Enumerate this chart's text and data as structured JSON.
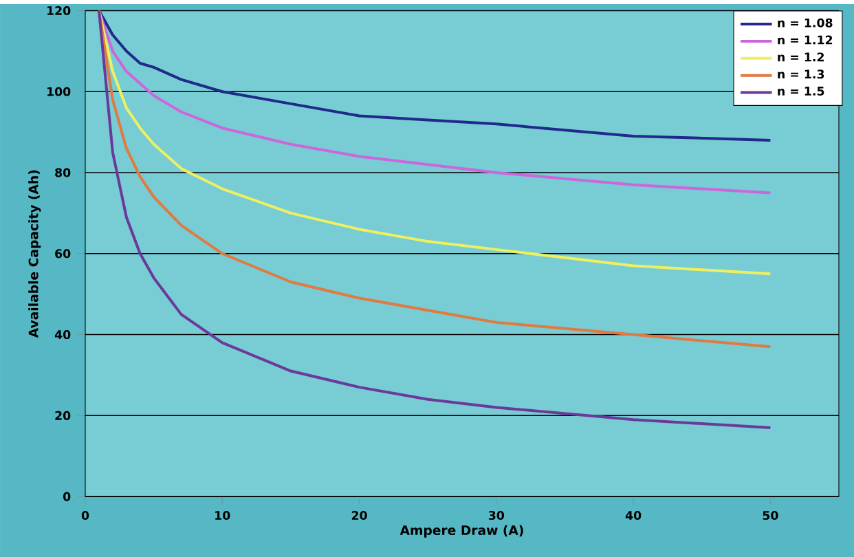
{
  "chart_data": {
    "type": "line",
    "xlabel": "Ampere Draw (A)",
    "ylabel": "Available Capacity (Ah)",
    "x": [
      1,
      2,
      3,
      4,
      5,
      7,
      10,
      15,
      20,
      25,
      30,
      40,
      50
    ],
    "xlim": [
      0,
      55
    ],
    "xticks": [
      0,
      10,
      20,
      30,
      40,
      50
    ],
    "ylim": [
      0,
      120
    ],
    "yticks": [
      0,
      20,
      40,
      60,
      80,
      100,
      120
    ],
    "grid": "y",
    "legend": "top right",
    "marker": "none",
    "line_style": "solid",
    "series": [
      {
        "name": "n = 1.08",
        "color": "#1f2a8a",
        "values": [
          120,
          114,
          110,
          107,
          106,
          103,
          100,
          97,
          94,
          93,
          92,
          89,
          88
        ]
      },
      {
        "name": "n = 1.12",
        "color": "#cc66dd",
        "values": [
          120,
          110,
          105,
          102,
          99,
          95,
          91,
          87,
          84,
          82,
          80,
          77,
          75
        ]
      },
      {
        "name": "n = 1.2",
        "color": "#eef060",
        "values": [
          120,
          105,
          96,
          91,
          87,
          81,
          76,
          70,
          66,
          63,
          61,
          57,
          55
        ]
      },
      {
        "name": "n = 1.3",
        "color": "#e07a40",
        "values": [
          120,
          98,
          86,
          79,
          74,
          67,
          60,
          53,
          49,
          46,
          43,
          40,
          37
        ]
      },
      {
        "name": "n = 1.5",
        "color": "#6a3a9a",
        "values": [
          120,
          85,
          69,
          60,
          54,
          45,
          38,
          31,
          27,
          24,
          22,
          19,
          17
        ]
      }
    ]
  }
}
